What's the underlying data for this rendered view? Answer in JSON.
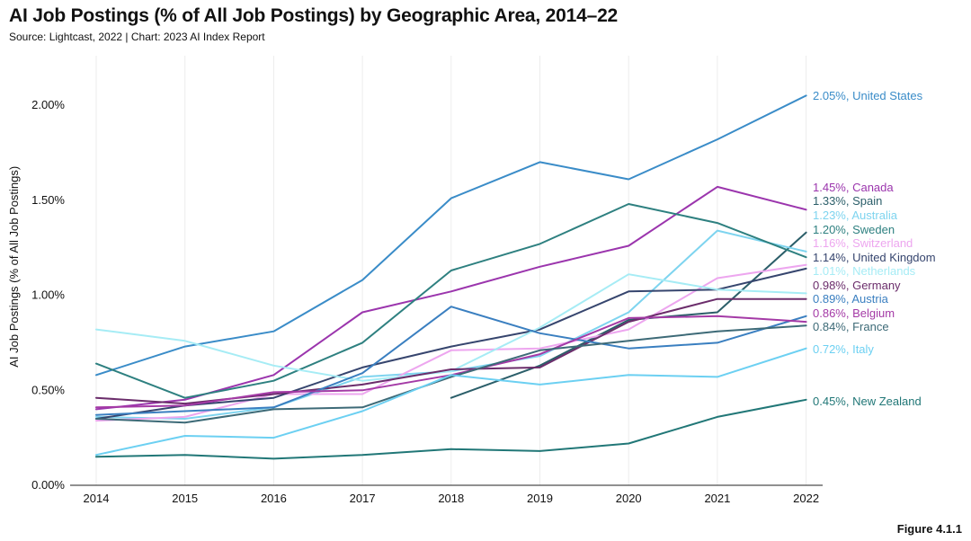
{
  "header": {
    "title": "AI Job Postings (% of All Job Postings) by Geographic Area, 2014–22",
    "source": "Source: Lightcast, 2022 | Chart: 2023 AI Index Report"
  },
  "footer": {
    "figure_label": "Figure 4.1.1"
  },
  "chart_data": {
    "type": "line",
    "title": "AI Job Postings (% of All Job Postings) by Geographic Area, 2014–22",
    "xlabel": "",
    "ylabel": "AI Job Postings (% of All Job Postings)",
    "x": [
      2014,
      2015,
      2016,
      2017,
      2018,
      2019,
      2020,
      2021,
      2022
    ],
    "ylim": [
      0,
      2.3
    ],
    "yticks": [
      0,
      0.5,
      1.0,
      1.5,
      2.0
    ],
    "ytick_labels": [
      "0.00%",
      "0.50%",
      "1.00%",
      "1.50%",
      "2.00%"
    ],
    "grid": "vertical",
    "series": [
      {
        "name": "United States",
        "label": "2.05%, United States",
        "color": "#3a8cc8",
        "values": [
          0.58,
          0.73,
          0.81,
          1.08,
          1.51,
          1.7,
          1.61,
          1.82,
          2.05
        ]
      },
      {
        "name": "Canada",
        "label": "1.45%, Canada",
        "color": "#9b35ad",
        "values": [
          0.4,
          0.45,
          0.58,
          0.91,
          1.02,
          1.15,
          1.26,
          1.57,
          1.45
        ]
      },
      {
        "name": "Spain",
        "label": "1.33%, Spain",
        "color": "#2b5e69",
        "values": [
          null,
          null,
          null,
          null,
          0.46,
          0.63,
          0.87,
          0.91,
          1.33
        ]
      },
      {
        "name": "Australia",
        "label": "1.23%, Australia",
        "color": "#7ed4ef",
        "values": [
          0.36,
          0.35,
          0.41,
          0.57,
          0.6,
          0.68,
          0.91,
          1.34,
          1.23
        ]
      },
      {
        "name": "Sweden",
        "label": "1.20%, Sweden",
        "color": "#2e8080",
        "values": [
          0.64,
          0.46,
          0.55,
          0.75,
          1.13,
          1.27,
          1.48,
          1.38,
          1.2
        ]
      },
      {
        "name": "Switzerland",
        "label": "1.16%, Switzerland",
        "color": "#eda6ef",
        "values": [
          0.34,
          0.36,
          0.48,
          0.48,
          0.71,
          0.72,
          0.82,
          1.09,
          1.16
        ]
      },
      {
        "name": "United Kingdom",
        "label": "1.14%, United Kingdom",
        "color": "#36456e",
        "values": [
          0.35,
          0.42,
          0.46,
          0.62,
          0.73,
          0.82,
          1.02,
          1.03,
          1.14
        ]
      },
      {
        "name": "Netherlands",
        "label": "1.01%, Netherlands",
        "color": "#a6ecf5",
        "values": [
          0.82,
          0.76,
          0.63,
          0.55,
          0.6,
          0.83,
          1.11,
          1.03,
          1.01
        ]
      },
      {
        "name": "Germany",
        "label": "0.98%, Germany",
        "color": "#6b2d6b",
        "values": [
          0.46,
          0.43,
          0.48,
          0.53,
          0.61,
          0.62,
          0.86,
          0.98,
          0.98
        ]
      },
      {
        "name": "Austria",
        "label": "0.89%, Austria",
        "color": "#3a7fc0",
        "values": [
          0.37,
          0.39,
          0.41,
          0.59,
          0.94,
          0.8,
          0.72,
          0.75,
          0.89
        ]
      },
      {
        "name": "Belgium",
        "label": "0.86%, Belgium",
        "color": "#a43aa6",
        "values": [
          0.41,
          0.42,
          0.49,
          0.5,
          0.58,
          0.69,
          0.88,
          0.89,
          0.86
        ]
      },
      {
        "name": "France",
        "label": "0.84%, France",
        "color": "#3d6a77",
        "values": [
          0.35,
          0.33,
          0.4,
          0.41,
          0.57,
          0.71,
          0.76,
          0.81,
          0.84
        ]
      },
      {
        "name": "Italy",
        "label": "0.72%, Italy",
        "color": "#6cd0f2",
        "values": [
          0.16,
          0.26,
          0.25,
          0.39,
          0.58,
          0.53,
          0.58,
          0.57,
          0.72
        ]
      },
      {
        "name": "New Zealand",
        "label": "0.45%, New Zealand",
        "color": "#217777",
        "values": [
          0.15,
          0.16,
          0.14,
          0.16,
          0.19,
          0.18,
          0.22,
          0.36,
          0.45
        ]
      }
    ]
  }
}
